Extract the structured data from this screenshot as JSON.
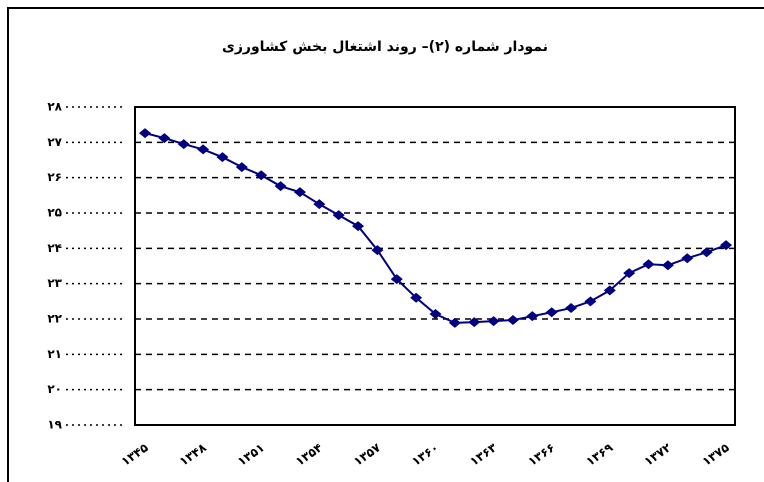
{
  "chart_data": {
    "type": "line",
    "title": "نمودار شماره (۲)– روند اشتغال بخش کشاورزی",
    "categories": [
      "۱۳۴۵",
      null,
      null,
      "۱۳۴۸",
      null,
      null,
      "۱۳۵۱",
      null,
      null,
      "۱۳۵۴",
      null,
      null,
      "۱۳۵۷",
      null,
      null,
      "۱۳۶۰",
      null,
      null,
      "۱۳۶۳",
      null,
      null,
      "۱۳۶۶",
      null,
      null,
      "۱۳۶۹",
      null,
      null,
      "۱۳۷۲",
      null,
      null,
      "۱۳۷۵"
    ],
    "series": [
      {
        "color": "#000080",
        "values": [
          27.26,
          27.12,
          26.95,
          26.8,
          26.58,
          26.3,
          26.07,
          25.76,
          25.59,
          25.25,
          24.94,
          24.63,
          23.95,
          23.13,
          22.6,
          22.14,
          21.89,
          21.91,
          21.94,
          21.97,
          22.08,
          22.19,
          22.31,
          22.5,
          22.81,
          23.3,
          23.55,
          23.52,
          23.72,
          23.89,
          24.09
        ]
      }
    ],
    "ylim": [
      19,
      28
    ],
    "yticks": [
      {
        "value": 19,
        "label": "۱۹"
      },
      {
        "value": 20,
        "label": "۲۰"
      },
      {
        "value": 21,
        "label": "۲۱"
      },
      {
        "value": 22,
        "label": "۲۲"
      },
      {
        "value": 23,
        "label": "۲۳"
      },
      {
        "value": 24,
        "label": "۲۴"
      },
      {
        "value": 25,
        "label": "۲۵"
      },
      {
        "value": 26,
        "label": "۲۶"
      },
      {
        "value": 27,
        "label": "۲۷"
      },
      {
        "value": 28,
        "label": "۲۸"
      }
    ],
    "grid": true
  }
}
